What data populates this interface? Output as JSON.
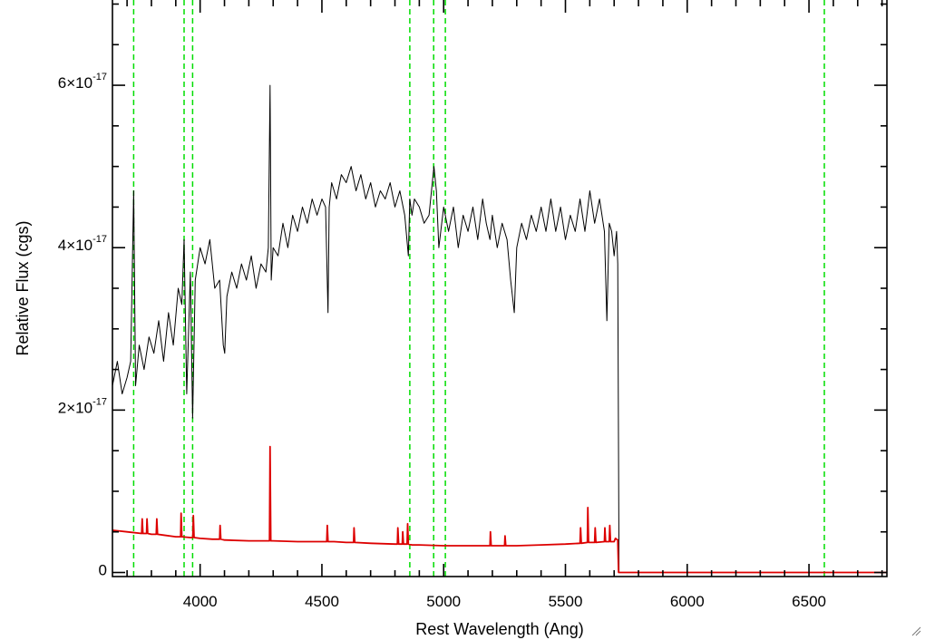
{
  "chart_data": {
    "type": "line",
    "title": "",
    "xlabel": "Rest Wavelength (Ang)",
    "ylabel": "Relative Flux (cgs)",
    "xlim": [
      3640,
      6820
    ],
    "ylim": [
      -5e-19,
      7.05e-17
    ],
    "x_ticks": [
      4000,
      4500,
      5000,
      5500,
      6000,
      6500
    ],
    "x_tick_labels": [
      "4000",
      "4500",
      "5000",
      "5500",
      "6000",
      "6500"
    ],
    "y_ticks": [
      {
        "value": 0,
        "mantissa": "0",
        "exponent": ""
      },
      {
        "value": 2e-17,
        "mantissa": "2×10",
        "exponent": "-17"
      },
      {
        "value": 4e-17,
        "mantissa": "4×10",
        "exponent": "-17"
      },
      {
        "value": 6e-17,
        "mantissa": "6×10",
        "exponent": "-17"
      }
    ],
    "grid": false,
    "reference_lines": {
      "color": "#00dd00",
      "style": "dashed",
      "x": [
        3727,
        3934,
        3969,
        4861,
        4959,
        5007,
        6563
      ]
    },
    "series": [
      {
        "color": "#000000",
        "x": [
          3640,
          3660,
          3680,
          3700,
          3715,
          3727,
          3735,
          3750,
          3770,
          3790,
          3810,
          3830,
          3850,
          3870,
          3890,
          3910,
          3925,
          3934,
          3945,
          3960,
          3969,
          3980,
          4000,
          4020,
          4040,
          4060,
          4080,
          4095,
          4101,
          4110,
          4130,
          4150,
          4170,
          4190,
          4210,
          4230,
          4250,
          4270,
          4280,
          4287,
          4292,
          4300,
          4320,
          4340,
          4360,
          4380,
          4400,
          4420,
          4440,
          4460,
          4480,
          4500,
          4515,
          4525,
          4530,
          4540,
          4560,
          4580,
          4600,
          4620,
          4640,
          4660,
          4680,
          4700,
          4720,
          4740,
          4760,
          4780,
          4800,
          4820,
          4840,
          4855,
          4861,
          4870,
          4880,
          4900,
          4920,
          4940,
          4960,
          4970,
          4980,
          5000,
          5020,
          5040,
          5060,
          5080,
          5100,
          5120,
          5140,
          5160,
          5175,
          5190,
          5200,
          5220,
          5240,
          5260,
          5275,
          5290,
          5300,
          5320,
          5340,
          5360,
          5380,
          5400,
          5420,
          5440,
          5460,
          5480,
          5500,
          5520,
          5540,
          5560,
          5580,
          5600,
          5620,
          5640,
          5660,
          5670,
          5680,
          5690,
          5700,
          5710,
          5715,
          5720,
          5740,
          5800,
          6000,
          6500,
          6820
        ],
        "y": [
          2.3e-17,
          2.6e-17,
          2.2e-17,
          2.4e-17,
          2.6e-17,
          4.7e-17,
          2.3e-17,
          2.8e-17,
          2.5e-17,
          2.9e-17,
          2.7e-17,
          3.1e-17,
          2.6e-17,
          3.2e-17,
          2.8e-17,
          3.5e-17,
          3.3e-17,
          4.1e-17,
          2.2e-17,
          3.7e-17,
          1.9e-17,
          3.6e-17,
          4e-17,
          3.8e-17,
          4.1e-17,
          3.5e-17,
          3.6e-17,
          2.8e-17,
          2.7e-17,
          3.4e-17,
          3.7e-17,
          3.5e-17,
          3.8e-17,
          3.6e-17,
          3.9e-17,
          3.5e-17,
          3.8e-17,
          3.7e-17,
          4e-17,
          6e-17,
          3.6e-17,
          4e-17,
          3.9e-17,
          4.3e-17,
          4e-17,
          4.4e-17,
          4.2e-17,
          4.5e-17,
          4.3e-17,
          4.6e-17,
          4.4e-17,
          4.6e-17,
          4.5e-17,
          3.2e-17,
          4.5e-17,
          4.8e-17,
          4.6e-17,
          4.9e-17,
          4.8e-17,
          5e-17,
          4.7e-17,
          4.9e-17,
          4.6e-17,
          4.8e-17,
          4.5e-17,
          4.7e-17,
          4.6e-17,
          4.8e-17,
          4.5e-17,
          4.7e-17,
          4.4e-17,
          3.9e-17,
          4.6e-17,
          4.4e-17,
          4.6e-17,
          4.5e-17,
          4.3e-17,
          4.4e-17,
          5e-17,
          4.7e-17,
          4e-17,
          4.5e-17,
          4.2e-17,
          4.5e-17,
          4e-17,
          4.4e-17,
          4.2e-17,
          4.5e-17,
          4.1e-17,
          4.6e-17,
          4.3e-17,
          4.1e-17,
          4.4e-17,
          4e-17,
          4.3e-17,
          4.1e-17,
          3.6e-17,
          3.2e-17,
          4e-17,
          4.3e-17,
          4.1e-17,
          4.4e-17,
          4.2e-17,
          4.5e-17,
          4.2e-17,
          4.6e-17,
          4.2e-17,
          4.5e-17,
          4.1e-17,
          4.4e-17,
          4.2e-17,
          4.6e-17,
          4.2e-17,
          4.7e-17,
          4.3e-17,
          4.6e-17,
          4.2e-17,
          3.1e-17,
          4.3e-17,
          4.2e-17,
          3.9e-17,
          4.2e-17,
          3.8e-17,
          0.0,
          0.0,
          0.0,
          0.0,
          0.0,
          0.0
        ]
      },
      {
        "color": "#dd0000",
        "x": [
          3640,
          3700,
          3760,
          3762,
          3765,
          3780,
          3782,
          3785,
          3800,
          3820,
          3822,
          3825,
          3850,
          3900,
          3920,
          3922,
          3925,
          3960,
          3970,
          3972,
          3975,
          4000,
          4050,
          4080,
          4082,
          4085,
          4100,
          4200,
          4270,
          4285,
          4287,
          4290,
          4295,
          4300,
          4400,
          4500,
          4520,
          4522,
          4525,
          4550,
          4600,
          4630,
          4632,
          4635,
          4700,
          4800,
          4810,
          4812,
          4815,
          4830,
          4832,
          4835,
          4850,
          4852,
          4855,
          4870,
          4900,
          5000,
          5100,
          5190,
          5192,
          5195,
          5250,
          5252,
          5255,
          5300,
          5400,
          5500,
          5560,
          5562,
          5565,
          5590,
          5592,
          5595,
          5620,
          5622,
          5625,
          5660,
          5662,
          5665,
          5680,
          5682,
          5685,
          5700,
          5705,
          5715,
          5718,
          5720,
          6000,
          6500,
          6820
        ],
        "y": [
          5.2e-18,
          5e-18,
          4.8e-18,
          6.6e-18,
          4.8e-18,
          4.8e-18,
          6.6e-18,
          4.8e-18,
          4.7e-18,
          4.7e-18,
          6.6e-18,
          4.7e-18,
          4.6e-18,
          4.4e-18,
          4.4e-18,
          7.3e-18,
          4.4e-18,
          4.3e-18,
          4.3e-18,
          7e-18,
          4.3e-18,
          4.2e-18,
          4.1e-18,
          4.1e-18,
          5.8e-18,
          4.1e-18,
          4e-18,
          3.9e-18,
          3.9e-18,
          3.9e-18,
          1.55e-17,
          3.9e-18,
          3.9e-18,
          3.9e-18,
          3.8e-18,
          3.8e-18,
          3.8e-18,
          5.8e-18,
          3.8e-18,
          3.8e-18,
          3.7e-18,
          3.7e-18,
          5.5e-18,
          3.7e-18,
          3.6e-18,
          3.5e-18,
          3.5e-18,
          5.5e-18,
          3.5e-18,
          3.5e-18,
          5e-18,
          3.5e-18,
          3.5e-18,
          6e-18,
          3.5e-18,
          3.4e-18,
          3.4e-18,
          3.3e-18,
          3.3e-18,
          3.3e-18,
          5e-18,
          3.3e-18,
          3.3e-18,
          4.5e-18,
          3.3e-18,
          3.3e-18,
          3.4e-18,
          3.5e-18,
          3.6e-18,
          5.5e-18,
          3.6e-18,
          3.7e-18,
          8e-18,
          3.7e-18,
          3.7e-18,
          5.5e-18,
          3.7e-18,
          3.8e-18,
          5.5e-18,
          3.8e-18,
          3.8e-18,
          5.8e-18,
          3.8e-18,
          3.8e-18,
          4.2e-18,
          4e-18,
          0.0,
          0.0,
          0.0,
          0.0,
          0.0
        ]
      }
    ]
  }
}
